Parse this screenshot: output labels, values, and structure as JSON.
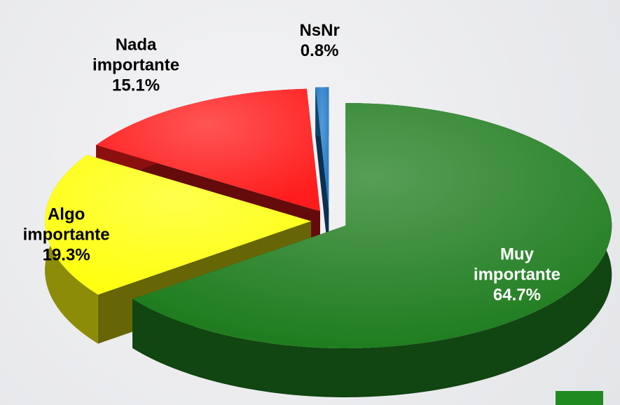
{
  "chart_data": {
    "type": "pie",
    "categories": [
      "Muy importante",
      "Algo importante",
      "Nada importante",
      "NsNr"
    ],
    "values": [
      64.7,
      19.3,
      15.1,
      0.8
    ],
    "value_labels": [
      "64.7%",
      "19.3%",
      "15.1%",
      "0.8%"
    ],
    "colors": [
      "#1f7d1f",
      "#ffff10",
      "#ff1c1c",
      "#1f78c8"
    ]
  }
}
